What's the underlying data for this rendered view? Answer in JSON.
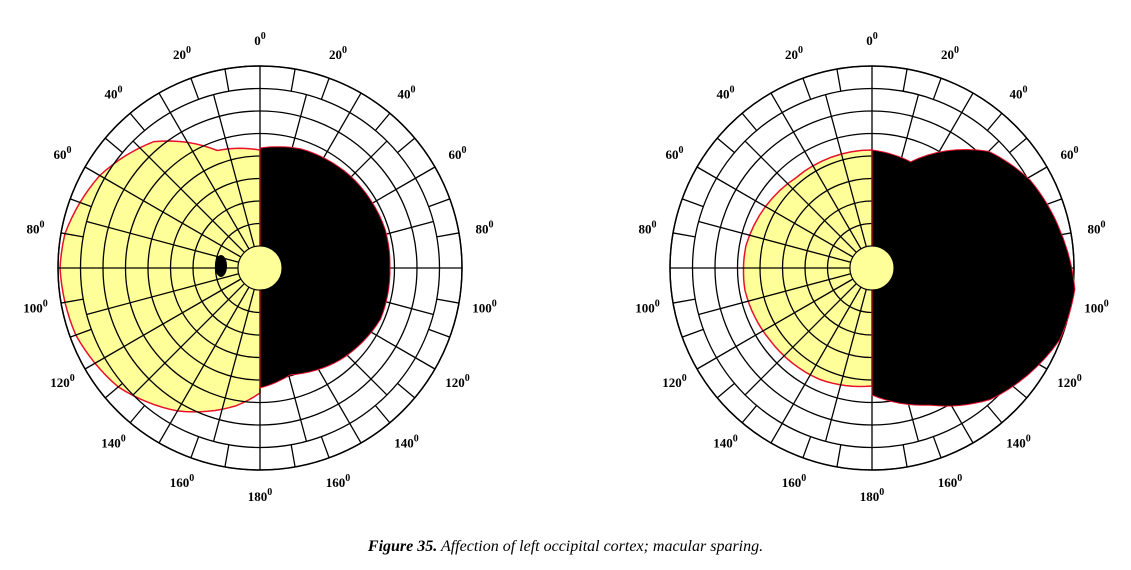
{
  "fields": [
    {
      "labels": [
        "0",
        "20",
        "40",
        "60",
        "80",
        "100",
        "120",
        "140",
        "160",
        "180",
        "160",
        "140",
        "120",
        "100",
        "80",
        "60",
        "40",
        "20"
      ]
    },
    {
      "labels": [
        "0",
        "20",
        "40",
        "60",
        "80",
        "100",
        "120",
        "140",
        "160",
        "180",
        "160",
        "140",
        "120",
        "100",
        "80",
        "60",
        "40",
        "20"
      ]
    }
  ],
  "degree_mark": "0",
  "caption": {
    "label": "Figure 35.",
    "text": "Affection of left occipital cortex; macular sparing."
  }
}
